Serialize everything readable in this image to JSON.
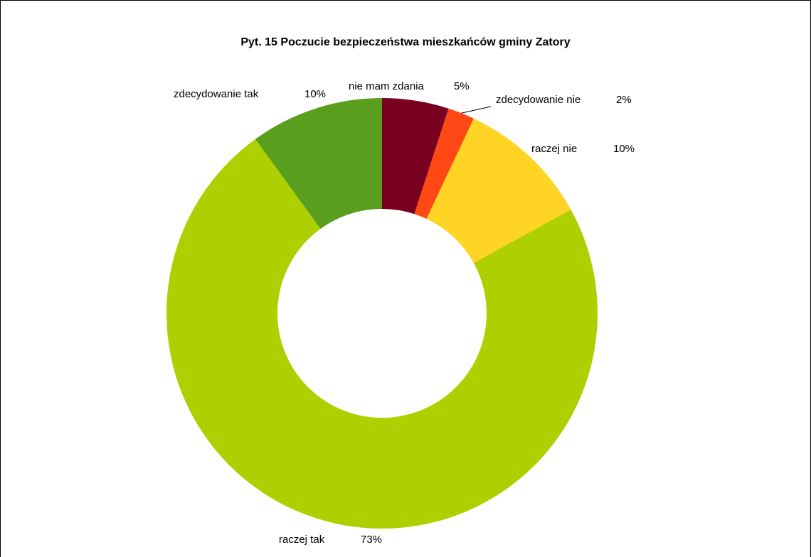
{
  "chart_data": {
    "type": "donut",
    "title": "Pyt. 15 Poczucie bezpieczeństwa mieszkańców gminy Zatory",
    "categories": [
      "nie mam zdania",
      "zdecydowanie nie",
      "raczej nie",
      "raczej tak",
      "zdecydowanie tak"
    ],
    "values": [
      5,
      2,
      10,
      73,
      10
    ],
    "value_labels": [
      "5%",
      "2%",
      "10%",
      "73%",
      "10%"
    ],
    "colors": [
      "#7a0020",
      "#ff4814",
      "#ffd424",
      "#afd000",
      "#5a9e1e"
    ]
  }
}
